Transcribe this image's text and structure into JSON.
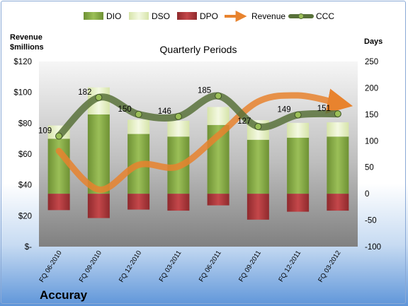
{
  "chart_data": {
    "type": "bar",
    "title": "Quarterly Periods",
    "company": "Accuray",
    "categories": [
      "FQ 06-2010",
      "FQ 09-2010",
      "FQ 12-2010",
      "FQ 03-2011",
      "FQ 06-2011",
      "FQ 09-2011",
      "FQ 12-2011",
      "FQ 03-2012"
    ],
    "left_axis": {
      "title_line1": "Revenue",
      "title_line2": "$millions",
      "ticks": [
        "$-",
        "$20",
        "$40",
        "$60",
        "$80",
        "$100",
        "$120"
      ],
      "ylim": [
        0,
        120
      ]
    },
    "right_axis": {
      "title": "Days",
      "ticks": [
        "-100",
        "-50",
        "0",
        "50",
        "100",
        "150",
        "200",
        "250"
      ],
      "ylim": [
        -100,
        250
      ]
    },
    "series": [
      {
        "name": "DIO",
        "kind": "bar",
        "axis": "right",
        "color": "#8cb04a",
        "values": [
          104,
          150,
          113,
          108,
          130,
          102,
          106,
          108
        ]
      },
      {
        "name": "DSO",
        "kind": "bar",
        "axis": "right",
        "color": "#eef4d4",
        "values": [
          25,
          51,
          27,
          30,
          34,
          37,
          28,
          27
        ]
      },
      {
        "name": "DPO",
        "kind": "bar",
        "axis": "right",
        "color": "#b33a3d",
        "values": [
          -31,
          -46,
          -30,
          -32,
          -22,
          -49,
          -34,
          -32
        ]
      },
      {
        "name": "Revenue",
        "kind": "line",
        "axis": "left",
        "color": "#e8832e",
        "values": [
          62,
          37,
          53,
          52,
          72,
          94,
          98,
          93
        ]
      },
      {
        "name": "CCC",
        "kind": "line",
        "axis": "right",
        "color": "#58713a",
        "values": [
          109,
          182,
          150,
          146,
          185,
          127,
          149,
          151
        ],
        "labels": [
          "109",
          "182",
          "150",
          "146",
          "185",
          "127",
          "149",
          "151"
        ]
      }
    ],
    "legend": [
      "DIO",
      "DSO",
      "DPO",
      "Revenue",
      "CCC"
    ],
    "legend_position": "top",
    "grid": false
  }
}
